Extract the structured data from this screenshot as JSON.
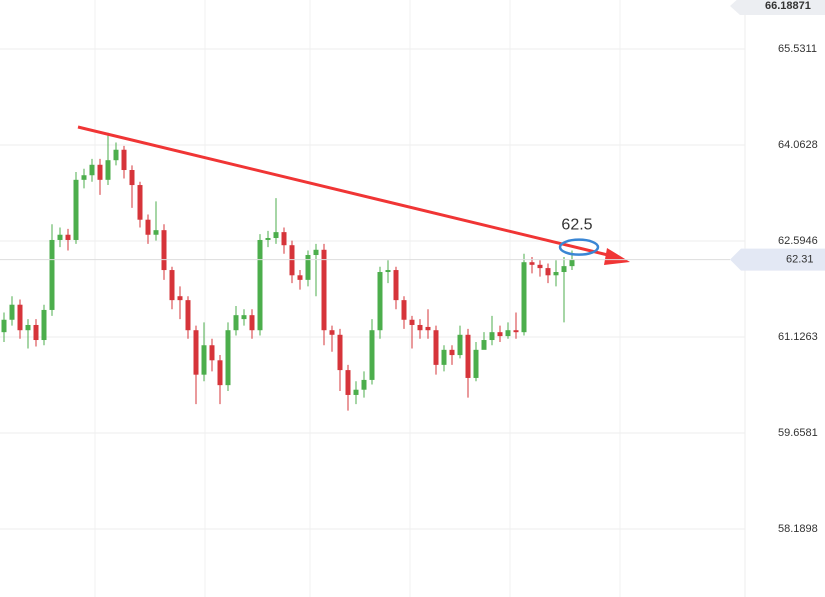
{
  "chart_data": {
    "type": "candlestick",
    "ylim": [
      57.15,
      66.28
    ],
    "yticks": [
      58.1898,
      59.6581,
      61.1263,
      62.5946,
      64.0628,
      65.5311
    ],
    "grid": true,
    "up_color": "#4cae4c",
    "down_color": "#d6343a",
    "top_value": 66.18871,
    "current_price": 62.31,
    "target_price": 62.5,
    "open": [
      61.2,
      61.39,
      61.62,
      61.23,
      61.31,
      61.08,
      61.54,
      62.61,
      62.69,
      62.61,
      63.53,
      63.6,
      63.76,
      63.53,
      63.83,
      63.99,
      63.68,
      63.45,
      62.92,
      62.69,
      62.76,
      62.15,
      61.75,
      61.69,
      61.23,
      60.55,
      61.0,
      60.77,
      60.39,
      61.23,
      61.4,
      61.46,
      61.23,
      62.61,
      62.64,
      62.73,
      62.53,
      62.07,
      62.0,
      62.38,
      62.46,
      61.23,
      61.16,
      60.62,
      60.24,
      60.32,
      60.47,
      61.23,
      62.12,
      62.15,
      61.69,
      61.39,
      61.31,
      61.28,
      61.23,
      60.7,
      60.93,
      60.85,
      61.16,
      60.5,
      60.93,
      61.08,
      61.2,
      61.14,
      61.23,
      61.2,
      62.27,
      62.23,
      62.18,
      62.07,
      62.12,
      62.21
    ],
    "high": [
      61.5,
      61.75,
      61.7,
      61.4,
      61.4,
      61.62,
      62.85,
      62.8,
      62.78,
      63.65,
      63.7,
      63.85,
      63.85,
      64.25,
      64.1,
      64.05,
      63.75,
      63.5,
      63.0,
      63.2,
      62.85,
      62.2,
      61.9,
      61.75,
      61.3,
      61.35,
      61.1,
      60.85,
      61.35,
      61.6,
      61.55,
      61.55,
      62.7,
      62.75,
      63.25,
      62.8,
      62.6,
      62.15,
      62.45,
      62.55,
      62.55,
      61.3,
      61.25,
      60.7,
      60.45,
      60.6,
      61.4,
      62.2,
      62.3,
      62.2,
      61.75,
      61.45,
      61.4,
      61.55,
      61.3,
      61.0,
      61.0,
      61.3,
      61.25,
      61.05,
      61.2,
      61.45,
      61.3,
      61.35,
      61.5,
      62.4,
      62.35,
      62.3,
      62.25,
      62.3,
      62.35,
      62.45
    ],
    "low": [
      61.05,
      61.3,
      61.1,
      60.95,
      60.98,
      61.0,
      61.45,
      62.5,
      62.45,
      62.55,
      63.4,
      63.5,
      63.3,
      63.45,
      63.75,
      63.55,
      63.1,
      62.8,
      62.55,
      62.6,
      62.0,
      61.55,
      61.4,
      61.1,
      60.1,
      60.45,
      60.6,
      60.1,
      60.3,
      61.15,
      61.3,
      61.1,
      61.15,
      62.5,
      62.55,
      62.4,
      61.95,
      61.85,
      61.9,
      61.75,
      61.0,
      60.9,
      60.3,
      60.0,
      60.1,
      60.2,
      60.4,
      61.1,
      61.95,
      61.55,
      61.25,
      60.95,
      61.1,
      61.1,
      60.55,
      60.6,
      60.7,
      60.8,
      60.2,
      60.45,
      60.95,
      61.0,
      61.05,
      61.1,
      61.1,
      61.15,
      62.1,
      62.05,
      61.95,
      61.9,
      61.35,
      62.15
    ],
    "close": [
      61.39,
      61.62,
      61.23,
      61.31,
      61.08,
      61.54,
      62.61,
      62.69,
      62.61,
      63.53,
      63.6,
      63.76,
      63.53,
      63.83,
      63.99,
      63.68,
      63.45,
      62.92,
      62.69,
      62.76,
      62.15,
      61.69,
      61.69,
      61.23,
      60.55,
      61.0,
      60.77,
      60.39,
      61.23,
      61.46,
      61.46,
      61.23,
      62.61,
      62.64,
      62.73,
      62.53,
      62.07,
      62.0,
      62.38,
      62.46,
      61.23,
      61.16,
      60.62,
      60.24,
      60.32,
      60.47,
      61.23,
      62.12,
      62.15,
      61.69,
      61.39,
      61.31,
      61.23,
      61.23,
      60.7,
      60.93,
      60.85,
      61.16,
      60.5,
      60.93,
      61.08,
      61.2,
      61.14,
      61.23,
      61.2,
      62.27,
      62.23,
      62.18,
      62.07,
      62.12,
      62.21,
      62.31
    ]
  }
}
